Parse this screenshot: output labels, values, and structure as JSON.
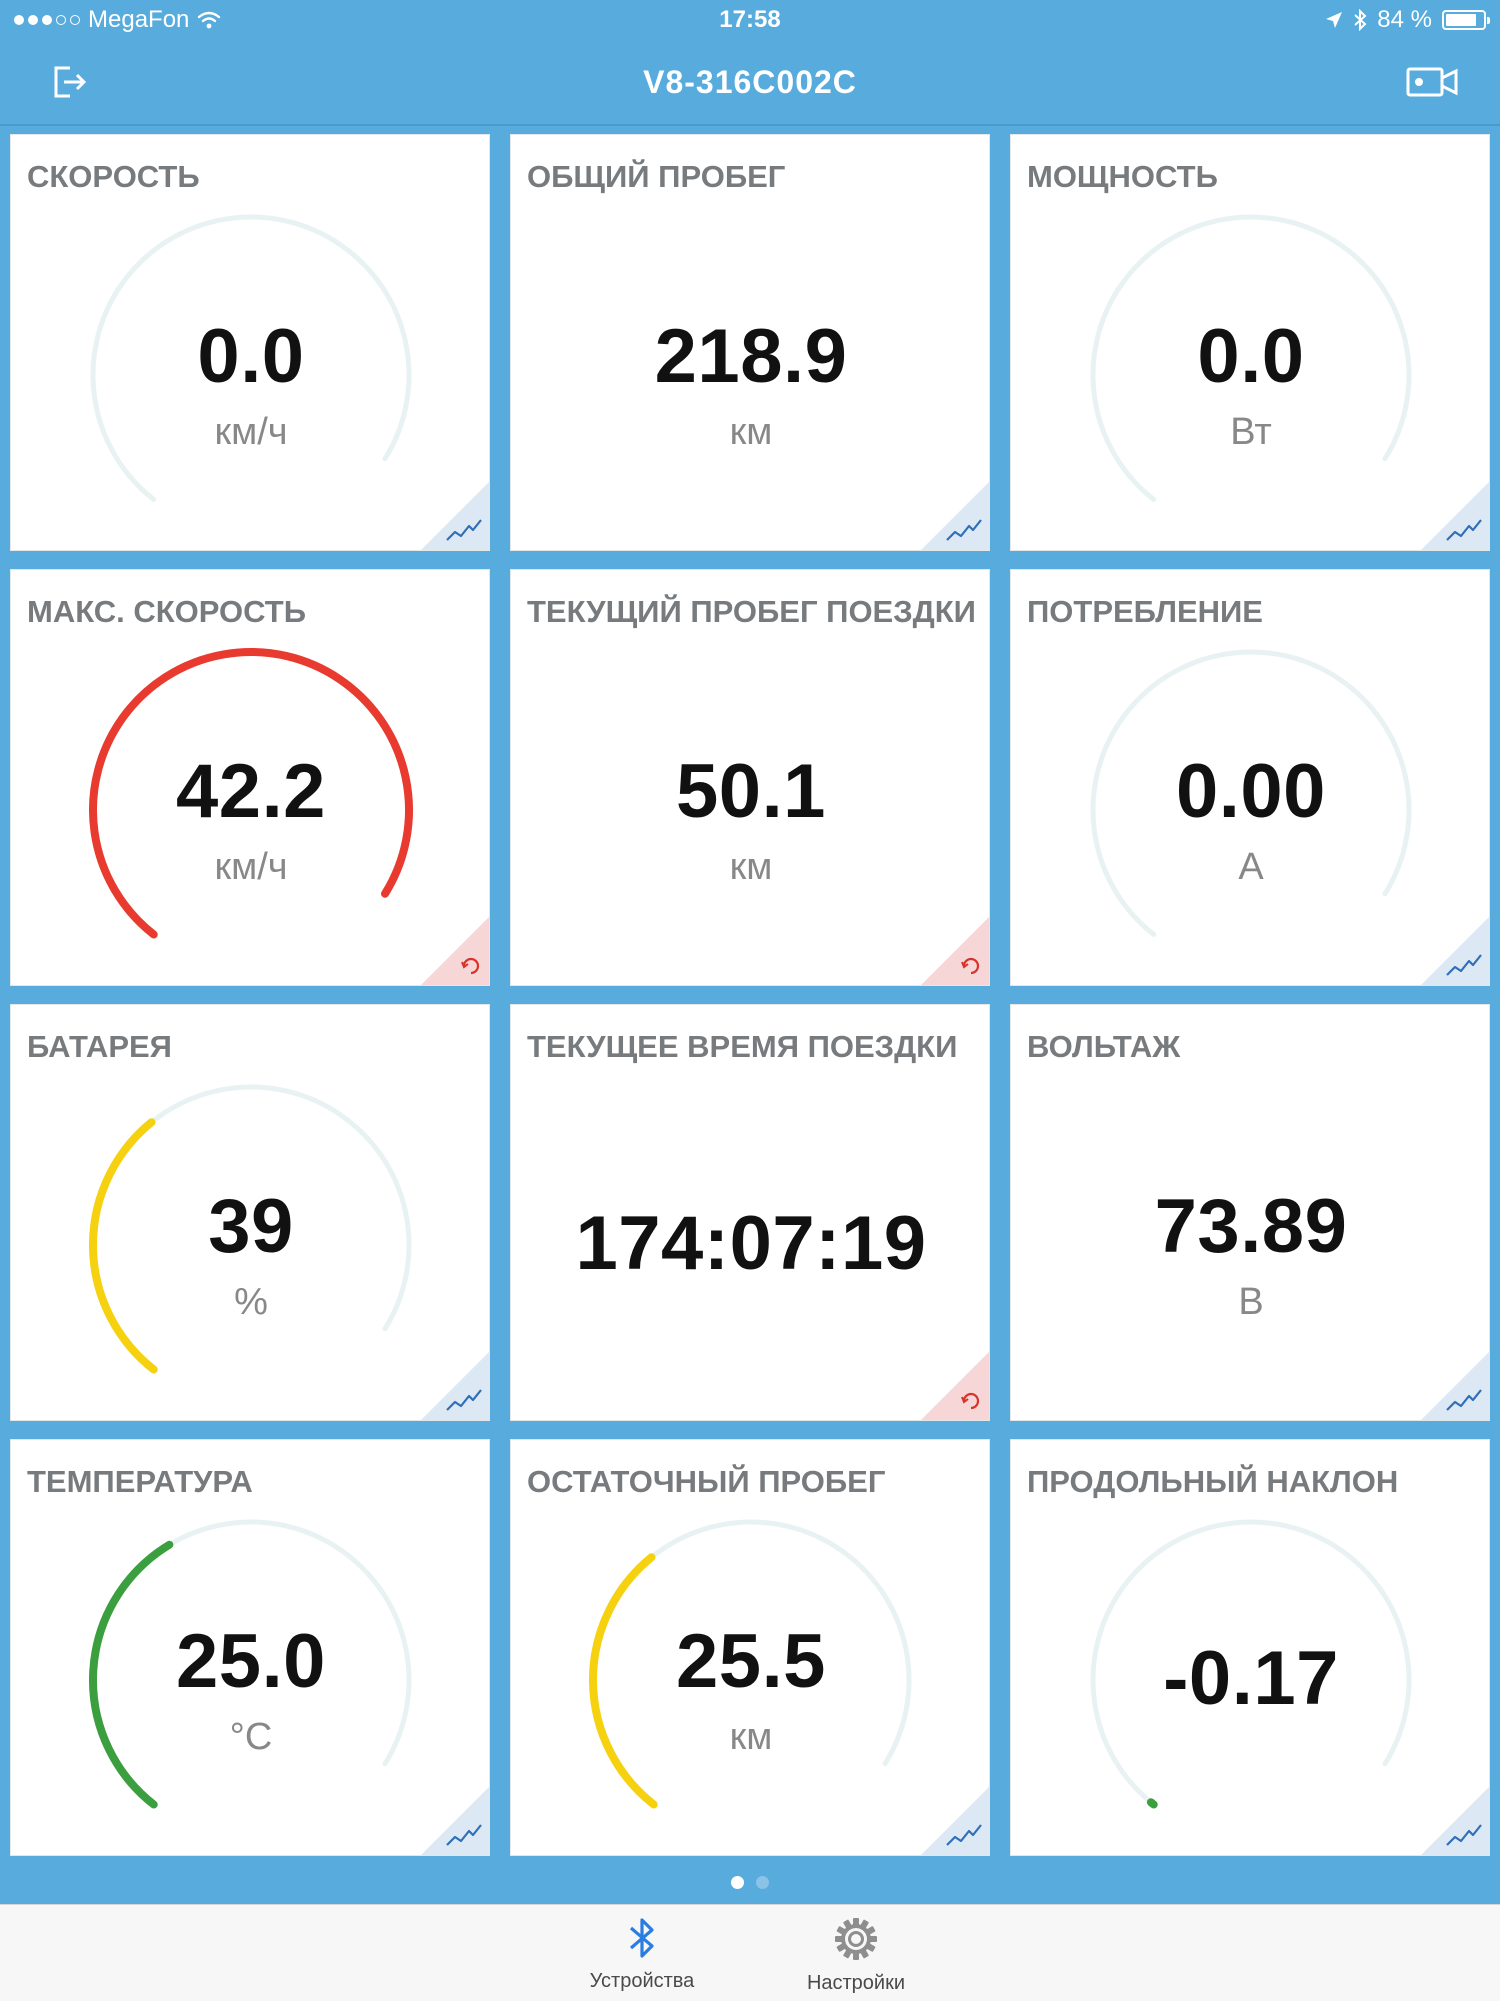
{
  "status_bar": {
    "carrier": "MegaFon",
    "time": "17:58",
    "battery_text": "84 %",
    "battery_level": 0.84
  },
  "nav": {
    "title": "V8-316C002C",
    "left_icon": "logout-icon",
    "right_icon": "video-camera-icon"
  },
  "cards": [
    {
      "id": "speed",
      "title": "СКОРОСТЬ",
      "value": "0.0",
      "unit": "км/ч",
      "gauge": true,
      "fill": 0.0,
      "color": "#e0eeee",
      "corner": "chart"
    },
    {
      "id": "total-mileage",
      "title": "ОБЩИЙ ПРОБЕГ",
      "value": "218.9",
      "unit": "км",
      "gauge": false,
      "corner": "chart"
    },
    {
      "id": "power",
      "title": "МОЩНОСТЬ",
      "value": "0.0",
      "unit": "Вт",
      "gauge": true,
      "fill": 0.0,
      "color": "#e0eeee",
      "corner": "chart"
    },
    {
      "id": "max-speed",
      "title": "МАКС. СКОРОСТЬ",
      "value": "42.2",
      "unit": "км/ч",
      "gauge": true,
      "fill": 1.0,
      "color": "#e93a2f",
      "corner": "reset"
    },
    {
      "id": "trip-mileage",
      "title": "ТЕКУЩИЙ ПРОБЕГ ПОЕЗДКИ",
      "value": "50.1",
      "unit": "км",
      "gauge": false,
      "corner": "reset"
    },
    {
      "id": "current",
      "title": "ПОТРЕБЛЕНИЕ",
      "value": "0.00",
      "unit": "А",
      "gauge": true,
      "fill": 0.0,
      "color": "#e0eeee",
      "corner": "chart"
    },
    {
      "id": "battery",
      "title": "БАТАРЕЯ",
      "value": "39",
      "unit": "%",
      "gauge": true,
      "fill": 0.39,
      "color": "#f5d10f",
      "corner": "chart"
    },
    {
      "id": "trip-time",
      "title": "ТЕКУЩЕЕ ВРЕМЯ ПОЕЗДКИ",
      "value": "174:07:19",
      "unit": "",
      "gauge": false,
      "corner": "reset"
    },
    {
      "id": "voltage",
      "title": "ВОЛЬТАЖ",
      "value": "73.89",
      "unit": "В",
      "gauge": false,
      "corner": "chart"
    },
    {
      "id": "temperature",
      "title": "ТЕМПЕРАТУРА",
      "value": "25.0",
      "unit": "°C",
      "gauge": true,
      "fill": 0.42,
      "color": "#3c9f3f",
      "corner": "chart"
    },
    {
      "id": "remaining-range",
      "title": "ОСТАТОЧНЫЙ ПРОБЕГ",
      "value": "25.5",
      "unit": "км",
      "gauge": true,
      "fill": 0.39,
      "color": "#f5d10f",
      "corner": "chart"
    },
    {
      "id": "pitch",
      "title": "ПРОДОЛЬНЫЙ НАКЛОН",
      "value": "-0.17",
      "unit": "",
      "gauge": true,
      "fill": 0.005,
      "color": "#3c9f3f",
      "corner": "chart"
    }
  ],
  "colors": {
    "background": "#58ABDD",
    "gauge_track": "#e8f2f2",
    "chart_icon": "#2f6fb8",
    "reset_icon": "#d8332b"
  },
  "pager": {
    "pages": 2,
    "current": 1
  },
  "tabbar": {
    "tabs": [
      {
        "label": "Устройства",
        "icon": "bluetooth-icon",
        "active": true
      },
      {
        "label": "Настройки",
        "icon": "gear-icon",
        "active": false
      }
    ]
  }
}
